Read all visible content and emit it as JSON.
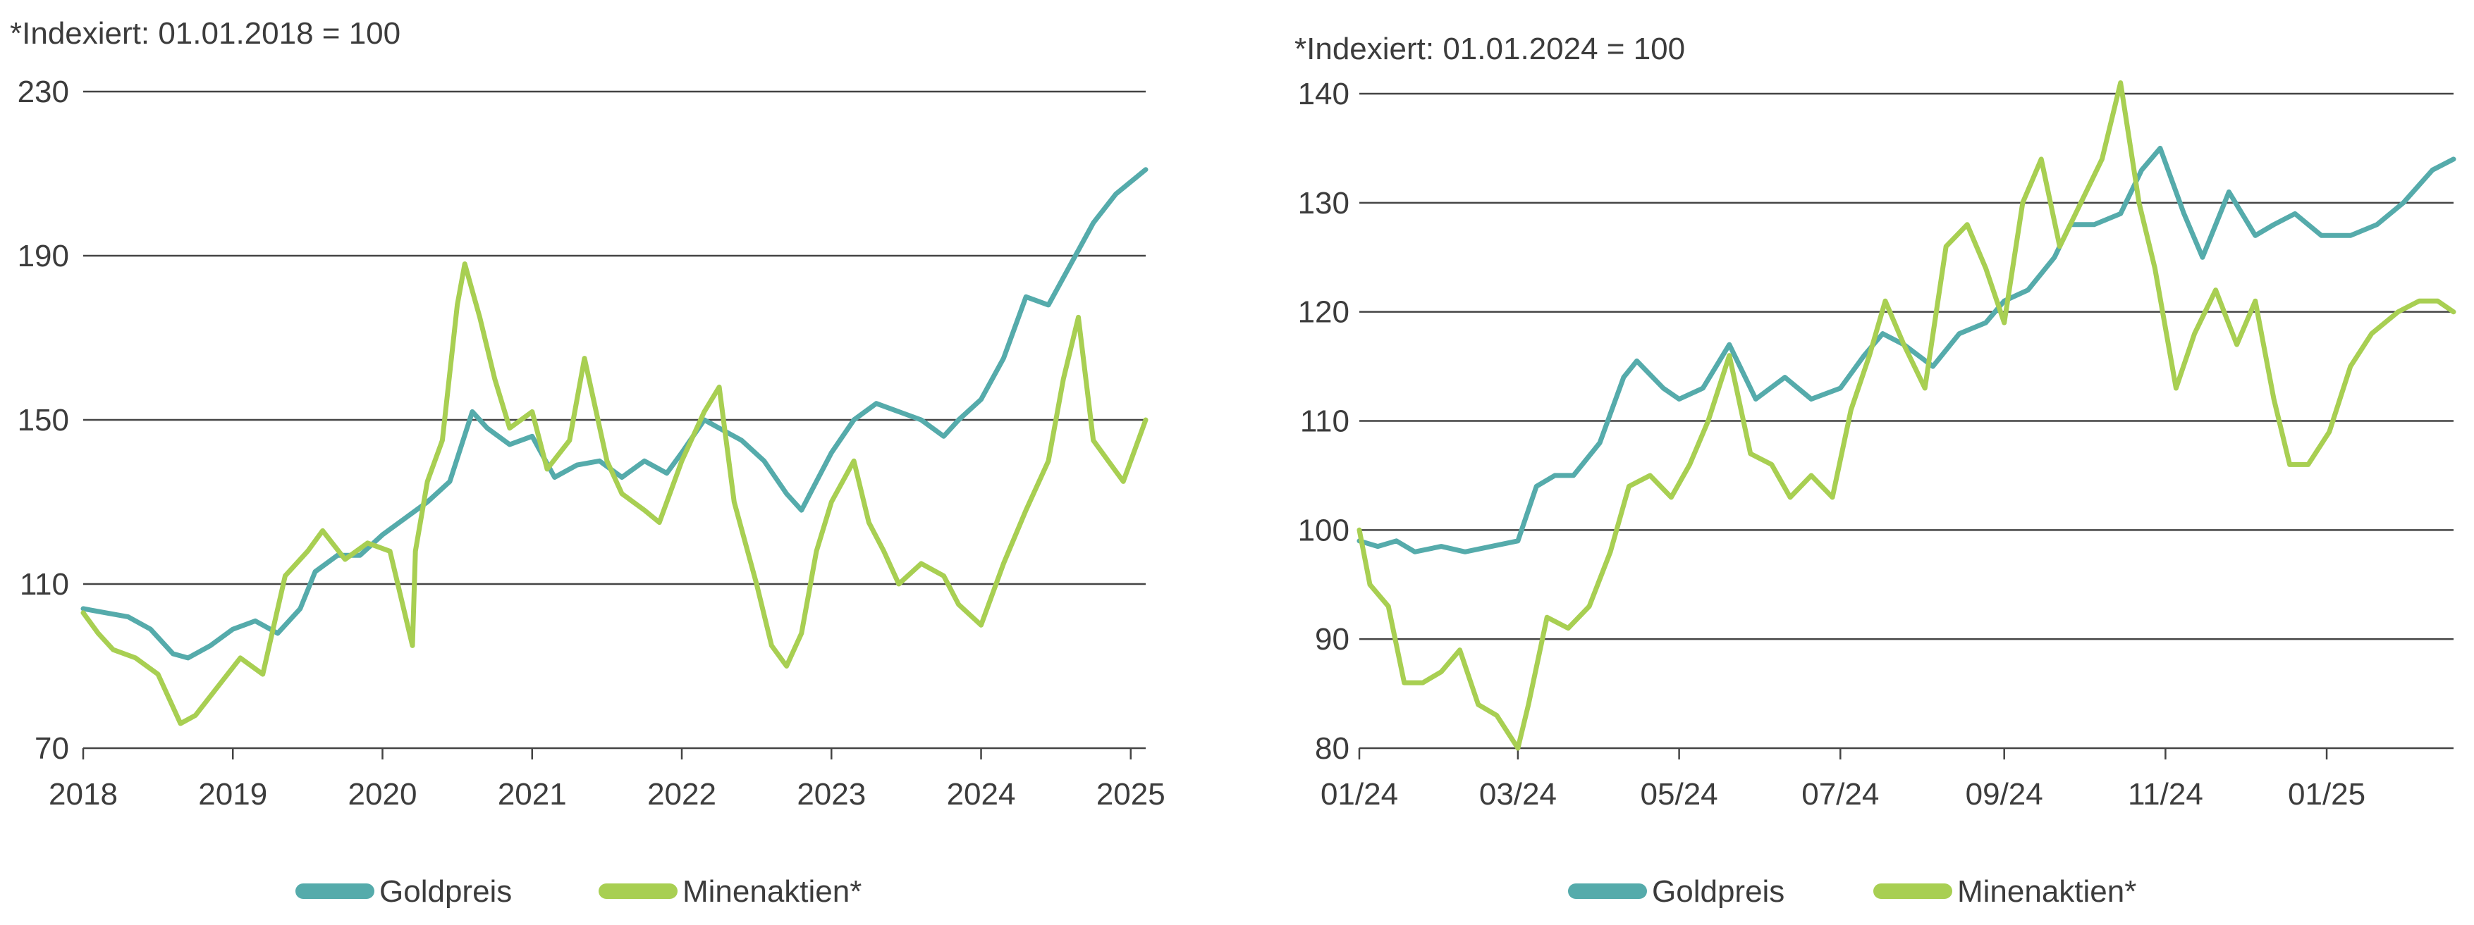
{
  "chart_data": [
    {
      "type": "line",
      "note": "*Indexiert: 01.01.2018 = 100",
      "ylim": [
        70,
        230
      ],
      "yticks": [
        "70",
        "110",
        "150",
        "190",
        "230"
      ],
      "xlim": [
        2018.0,
        2025.1
      ],
      "xticks": [
        "2018",
        "2019",
        "2020",
        "2021",
        "2022",
        "2023",
        "2024",
        "2025"
      ],
      "grid": true,
      "legend_position": "bottom",
      "series": [
        {
          "name": "Goldpreis",
          "color": "#55abab",
          "x": [
            2018.0,
            2018.15,
            2018.3,
            2018.45,
            2018.6,
            2018.7,
            2018.85,
            2019.0,
            2019.15,
            2019.3,
            2019.45,
            2019.55,
            2019.7,
            2019.85,
            2020.0,
            2020.15,
            2020.3,
            2020.45,
            2020.6,
            2020.7,
            2020.85,
            2021.0,
            2021.15,
            2021.3,
            2021.45,
            2021.6,
            2021.75,
            2021.9,
            2022.0,
            2022.15,
            2022.25,
            2022.4,
            2022.55,
            2022.7,
            2022.8,
            2022.9,
            2023.0,
            2023.15,
            2023.3,
            2023.45,
            2023.6,
            2023.75,
            2023.85,
            2024.0,
            2024.15,
            2024.3,
            2024.45,
            2024.6,
            2024.75,
            2024.9,
            2025.0,
            2025.1
          ],
          "y": [
            104,
            103,
            102,
            99,
            93,
            92,
            95,
            99,
            101,
            98,
            104,
            113,
            117,
            117,
            122,
            126,
            130,
            135,
            152,
            148,
            144,
            146,
            136,
            139,
            140,
            136,
            140,
            137,
            142,
            150,
            148,
            145,
            140,
            132,
            128,
            135,
            142,
            150,
            154,
            152,
            150,
            146,
            150,
            155,
            165,
            180,
            178,
            188,
            198,
            205,
            208,
            211
          ]
        },
        {
          "name": "Minenaktien*",
          "color": "#a8cf52",
          "x": [
            2018.0,
            2018.1,
            2018.2,
            2018.35,
            2018.5,
            2018.65,
            2018.75,
            2018.9,
            2019.05,
            2019.2,
            2019.35,
            2019.5,
            2019.6,
            2019.75,
            2019.9,
            2020.05,
            2020.2,
            2020.22,
            2020.3,
            2020.4,
            2020.5,
            2020.55,
            2020.65,
            2020.75,
            2020.85,
            2021.0,
            2021.1,
            2021.25,
            2021.35,
            2021.5,
            2021.6,
            2021.75,
            2021.85,
            2022.0,
            2022.15,
            2022.25,
            2022.35,
            2022.5,
            2022.6,
            2022.7,
            2022.8,
            2022.9,
            2023.0,
            2023.15,
            2023.25,
            2023.35,
            2023.45,
            2023.6,
            2023.75,
            2023.85,
            2024.0,
            2024.15,
            2024.3,
            2024.45,
            2024.55,
            2024.65,
            2024.75,
            2024.85,
            2024.95,
            2025.1
          ],
          "y": [
            103,
            98,
            94,
            92,
            88,
            76,
            78,
            85,
            92,
            88,
            112,
            118,
            123,
            116,
            120,
            118,
            95,
            118,
            135,
            145,
            178,
            188,
            175,
            160,
            148,
            152,
            138,
            145,
            165,
            140,
            132,
            128,
            125,
            140,
            152,
            158,
            130,
            110,
            95,
            90,
            98,
            118,
            130,
            140,
            125,
            118,
            110,
            115,
            112,
            105,
            100,
            115,
            128,
            140,
            160,
            175,
            145,
            140,
            135,
            150
          ]
        }
      ]
    },
    {
      "type": "line",
      "note": "*Indexiert: 01.01.2024 = 100",
      "ylim": [
        80,
        140
      ],
      "yticks": [
        "80",
        "90",
        "100",
        "110",
        "120",
        "130",
        "140"
      ],
      "xlim": [
        "2024-01-01",
        "2025-02-18"
      ],
      "xticks": [
        {
          "date": "2024-01-01",
          "label": "01/24"
        },
        {
          "date": "2024-03-01",
          "label": "03/24"
        },
        {
          "date": "2024-05-01",
          "label": "05/24"
        },
        {
          "date": "2024-07-01",
          "label": "07/24"
        },
        {
          "date": "2024-09-01",
          "label": "09/24"
        },
        {
          "date": "2024-11-01",
          "label": "11/24"
        },
        {
          "date": "2025-01-01",
          "label": "01/25"
        }
      ],
      "grid": true,
      "legend_position": "bottom",
      "series": [
        {
          "name": "Goldpreis",
          "color": "#55abab",
          "x": [
            "2024-01-01",
            "2024-01-08",
            "2024-01-15",
            "2024-01-22",
            "2024-02-01",
            "2024-02-10",
            "2024-02-20",
            "2024-03-01",
            "2024-03-08",
            "2024-03-15",
            "2024-03-22",
            "2024-04-01",
            "2024-04-10",
            "2024-04-15",
            "2024-04-25",
            "2024-05-01",
            "2024-05-10",
            "2024-05-20",
            "2024-05-30",
            "2024-06-10",
            "2024-06-20",
            "2024-07-01",
            "2024-07-10",
            "2024-07-17",
            "2024-07-25",
            "2024-08-05",
            "2024-08-15",
            "2024-08-25",
            "2024-09-01",
            "2024-09-10",
            "2024-09-20",
            "2024-09-26",
            "2024-10-05",
            "2024-10-15",
            "2024-10-23",
            "2024-10-30",
            "2024-11-08",
            "2024-11-15",
            "2024-11-25",
            "2024-12-05",
            "2024-12-12",
            "2024-12-20",
            "2024-12-30",
            "2025-01-10",
            "2025-01-20",
            "2025-01-30",
            "2025-02-10",
            "2025-02-18"
          ],
          "y": [
            99,
            98.5,
            99,
            98,
            98.5,
            98,
            98.5,
            99,
            104,
            105,
            105,
            108,
            114,
            115.5,
            113,
            112,
            113,
            117,
            112,
            114,
            112,
            113,
            116,
            118,
            117,
            115,
            118,
            119,
            121,
            122,
            125,
            128,
            128,
            129,
            133,
            135,
            129,
            125,
            131,
            127,
            128,
            129,
            127,
            127,
            128,
            130,
            133,
            134
          ]
        },
        {
          "name": "Minenaktien*",
          "color": "#a8cf52",
          "x": [
            "2024-01-01",
            "2024-01-05",
            "2024-01-12",
            "2024-01-18",
            "2024-01-25",
            "2024-02-01",
            "2024-02-08",
            "2024-02-15",
            "2024-02-22",
            "2024-03-01",
            "2024-03-05",
            "2024-03-12",
            "2024-03-20",
            "2024-03-28",
            "2024-04-05",
            "2024-04-12",
            "2024-04-20",
            "2024-04-28",
            "2024-05-05",
            "2024-05-12",
            "2024-05-20",
            "2024-05-28",
            "2024-06-05",
            "2024-06-12",
            "2024-06-20",
            "2024-06-28",
            "2024-07-05",
            "2024-07-12",
            "2024-07-18",
            "2024-07-25",
            "2024-08-02",
            "2024-08-10",
            "2024-08-18",
            "2024-08-25",
            "2024-09-01",
            "2024-09-08",
            "2024-09-15",
            "2024-09-22",
            "2024-09-30",
            "2024-10-08",
            "2024-10-15",
            "2024-10-22",
            "2024-10-28",
            "2024-11-05",
            "2024-11-12",
            "2024-11-20",
            "2024-11-28",
            "2024-12-05",
            "2024-12-12",
            "2024-12-18",
            "2024-12-25",
            "2025-01-02",
            "2025-01-10",
            "2025-01-18",
            "2025-01-28",
            "2025-02-05",
            "2025-02-12",
            "2025-02-18"
          ],
          "y": [
            100,
            95,
            93,
            86,
            86,
            87,
            89,
            84,
            83,
            80,
            84,
            92,
            91,
            93,
            98,
            104,
            105,
            103,
            106,
            110,
            116,
            107,
            106,
            103,
            105,
            103,
            111,
            116,
            121,
            117,
            113,
            126,
            128,
            124,
            119,
            130,
            134,
            126,
            130,
            134,
            141,
            130,
            124,
            113,
            118,
            122,
            117,
            121,
            112,
            106,
            106,
            109,
            115,
            118,
            120,
            121,
            121,
            120
          ]
        }
      ]
    }
  ],
  "legend": [
    {
      "label": "Goldpreis",
      "color": "#55abab"
    },
    {
      "label": "Minenaktien*",
      "color": "#a8cf52"
    }
  ]
}
